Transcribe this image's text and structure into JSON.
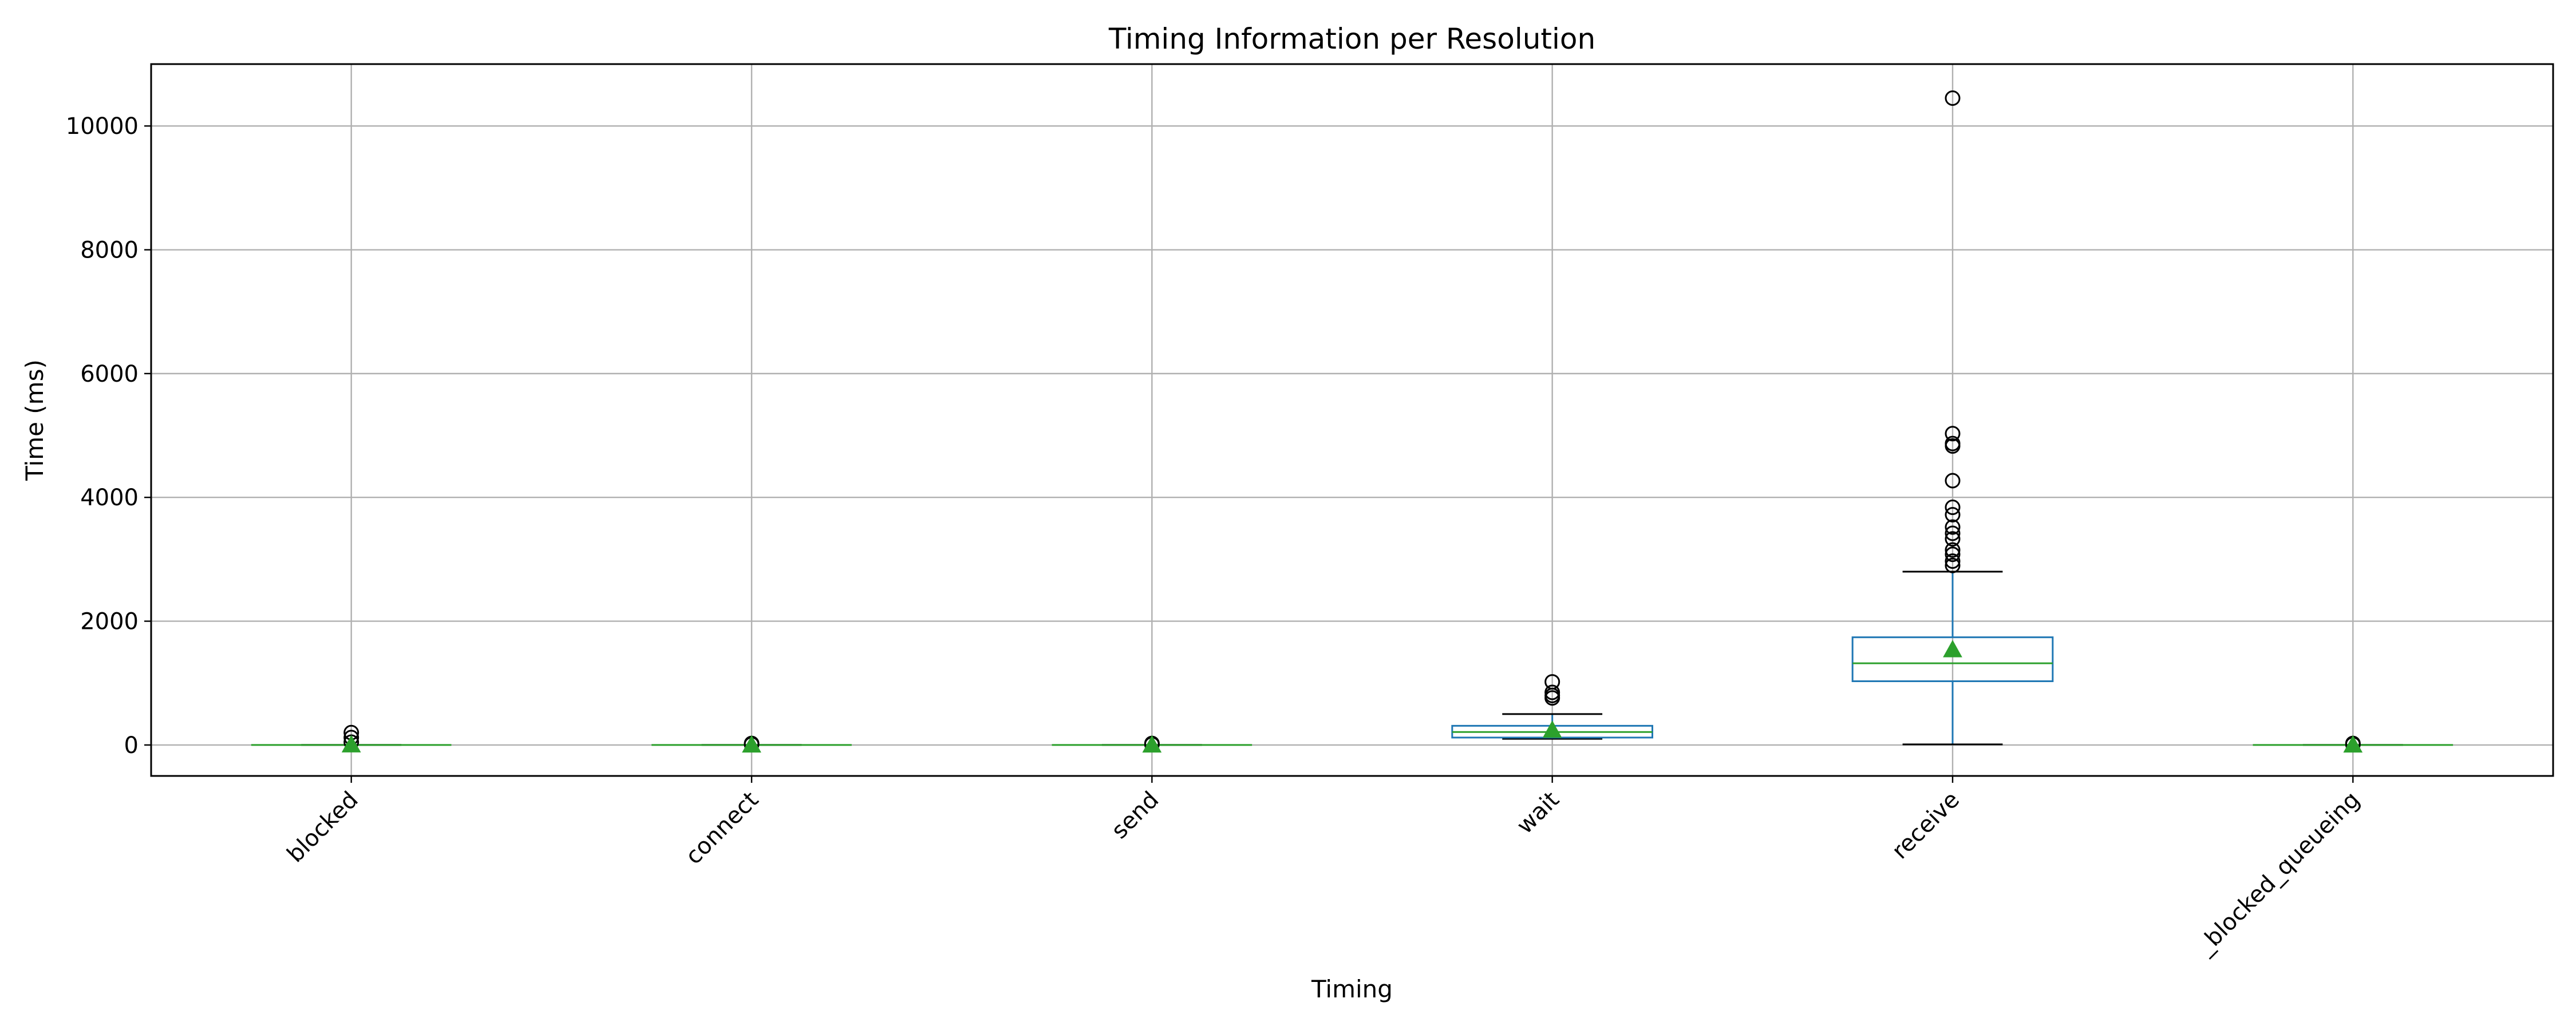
{
  "chart_data": {
    "type": "box",
    "title": "Timing Information per Resolution",
    "xlabel": "Timing",
    "ylabel": "Time (ms)",
    "ylim": [
      -500,
      11000
    ],
    "yticks": [
      0,
      2000,
      4000,
      6000,
      8000,
      10000
    ],
    "grid": true,
    "categories": [
      "blocked",
      "connect",
      "send",
      "wait",
      "receive",
      "_blocked_queueing"
    ],
    "boxes": [
      {
        "category": "blocked",
        "whisker_low": 0,
        "q1": 0,
        "median": 0,
        "q3": 0,
        "whisker_high": 0,
        "mean": 3,
        "outliers": [
          45,
          120,
          200
        ]
      },
      {
        "category": "connect",
        "whisker_low": 0,
        "q1": 0,
        "median": 0,
        "q3": 0,
        "whisker_high": 0,
        "mean": 1,
        "outliers": [
          10,
          25
        ]
      },
      {
        "category": "send",
        "whisker_low": 0,
        "q1": 0,
        "median": 0,
        "q3": 0,
        "whisker_high": 0,
        "mean": 1,
        "outliers": [
          10,
          25
        ]
      },
      {
        "category": "wait",
        "whisker_low": 100,
        "q1": 120,
        "median": 210,
        "q3": 310,
        "whisker_high": 500,
        "mean": 240,
        "outliers": [
          760,
          800,
          850,
          1020
        ]
      },
      {
        "category": "receive",
        "whisker_low": 10,
        "q1": 1030,
        "median": 1320,
        "q3": 1740,
        "whisker_high": 2800,
        "mean": 1540,
        "outliers": [
          2900,
          2970,
          3080,
          3150,
          3330,
          3420,
          3520,
          3720,
          3840,
          4270,
          4830,
          4870,
          5030,
          10450
        ]
      },
      {
        "category": "_blocked_queueing",
        "whisker_low": 0,
        "q1": 0,
        "median": 0,
        "q3": 0,
        "whisker_high": 0,
        "mean": 1,
        "outliers": [
          10,
          25
        ]
      }
    ],
    "colors": {
      "box": "#1f77b4",
      "median": "#2ca02c",
      "mean": "#2ca02c",
      "whisker": "#000000",
      "outlier": "#000000",
      "grid": "#b0b0b0"
    }
  }
}
